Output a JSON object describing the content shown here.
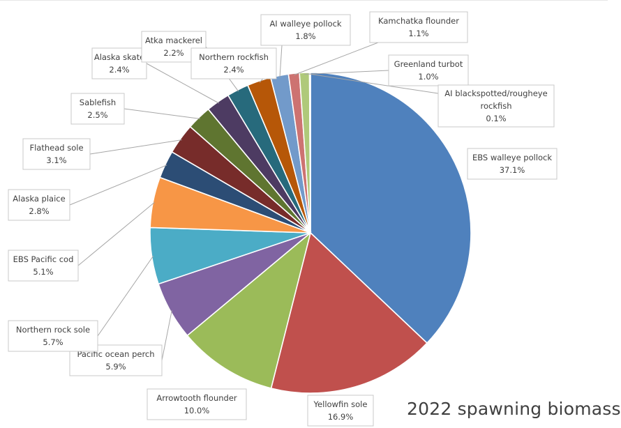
{
  "chart_data": {
    "type": "pie",
    "title": "2022 spawning biomass",
    "slices": [
      {
        "label": "EBS walleye pollock",
        "value": 37.1,
        "value_label": "37.1%",
        "color": "#4f81bd"
      },
      {
        "label": "Yellowfin sole",
        "value": 16.9,
        "value_label": "16.9%",
        "color": "#c0504d"
      },
      {
        "label": "Arrowtooth flounder",
        "value": 10.0,
        "value_label": "10.0%",
        "color": "#9bbb59"
      },
      {
        "label": "Pacific ocean perch",
        "value": 5.9,
        "value_label": "5.9%",
        "color": "#8064a2"
      },
      {
        "label": "Northern rock sole",
        "value": 5.7,
        "value_label": "5.7%",
        "color": "#4bacc6"
      },
      {
        "label": "EBS Pacific cod",
        "value": 5.1,
        "value_label": "5.1%",
        "color": "#f79646"
      },
      {
        "label": "Alaska plaice",
        "value": 2.8,
        "value_label": "2.8%",
        "color": "#2c4d75"
      },
      {
        "label": "Flathead sole",
        "value": 3.1,
        "value_label": "3.1%",
        "color": "#772c2a"
      },
      {
        "label": "Sablefish",
        "value": 2.5,
        "value_label": "2.5%",
        "color": "#5f7530"
      },
      {
        "label": "Alaska skate",
        "value": 2.4,
        "value_label": "2.4%",
        "color": "#4d3b62"
      },
      {
        "label": "Atka mackerel",
        "value": 2.2,
        "value_label": "2.2%",
        "color": "#276a7c"
      },
      {
        "label": "Northern rockfish",
        "value": 2.4,
        "value_label": "2.4%",
        "color": "#b65708"
      },
      {
        "label": "AI walleye pollock",
        "value": 1.8,
        "value_label": "1.8%",
        "color": "#729aca"
      },
      {
        "label": "Kamchatka flounder",
        "value": 1.1,
        "value_label": "1.1%",
        "color": "#cd7371"
      },
      {
        "label": "Greenland turbot",
        "value": 1.0,
        "value_label": "1.0%",
        "color": "#afc97a"
      },
      {
        "label": "AI blackspotted/rougheye rockfish",
        "value": 0.1,
        "value_label": "0.1%",
        "color": "#8db3e2"
      }
    ]
  }
}
